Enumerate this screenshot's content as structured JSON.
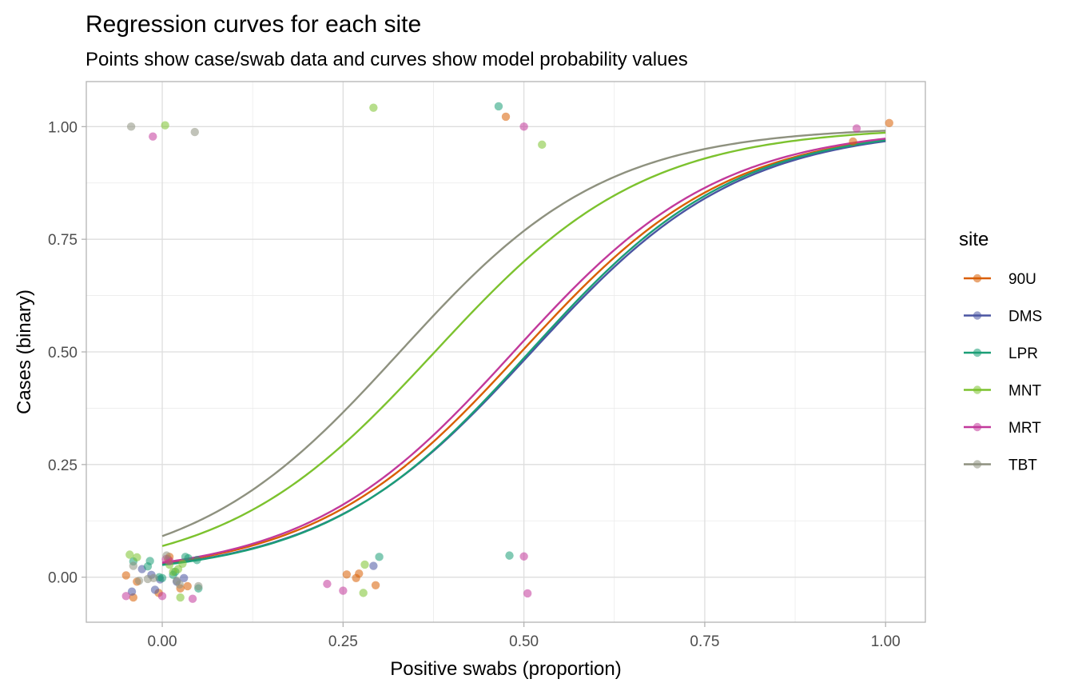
{
  "chart_data": {
    "type": "scatter",
    "title": "Regression curves for each site",
    "subtitle": "Points show case/swab data and curves show model probability values",
    "xlabel": "Positive swabs (proportion)",
    "ylabel": "Cases (binary)",
    "xlim": [
      -0.105,
      1.055
    ],
    "ylim": [
      -0.1,
      1.1
    ],
    "x_ticks": [
      0.0,
      0.25,
      0.5,
      0.75,
      1.0
    ],
    "x_tick_labels": [
      "0.00",
      "0.25",
      "0.50",
      "0.75",
      "1.00"
    ],
    "y_ticks": [
      0.0,
      0.25,
      0.5,
      0.75,
      1.0
    ],
    "y_tick_labels": [
      "0.00",
      "0.25",
      "0.50",
      "0.75",
      "1.00"
    ],
    "grid": true,
    "legend_title": "site",
    "legend_position": "right",
    "series": [
      {
        "name": "90U",
        "color": "#D95F02",
        "curve": {
          "intercept": -3.45,
          "slope": 6.95
        },
        "points": [
          [
            -0.05,
            0.004
          ],
          [
            -0.04,
            -0.045
          ],
          [
            -0.035,
            -0.01
          ],
          [
            -0.005,
            -0.035
          ],
          [
            0.008,
            0.04
          ],
          [
            0.01,
            0.045
          ],
          [
            0.025,
            -0.025
          ],
          [
            0.035,
            -0.02
          ],
          [
            0.255,
            0.006
          ],
          [
            0.268,
            -0.002
          ],
          [
            0.272,
            0.008
          ],
          [
            0.295,
            -0.018
          ],
          [
            0.475,
            1.022
          ],
          [
            0.955,
            0.967
          ],
          [
            1.005,
            1.008
          ]
        ]
      },
      {
        "name": "DMS",
        "color": "#4A55A2",
        "curve": {
          "intercept": -3.55,
          "slope": 6.95
        },
        "points": [
          [
            -0.042,
            -0.032
          ],
          [
            -0.028,
            0.018
          ],
          [
            -0.015,
            0.005
          ],
          [
            -0.01,
            -0.028
          ],
          [
            -0.003,
            -0.005
          ],
          [
            0.02,
            -0.01
          ],
          [
            0.03,
            -0.002
          ],
          [
            0.292,
            0.025
          ]
        ]
      },
      {
        "name": "LPR",
        "color": "#1B9E77",
        "curve": {
          "intercept": -3.58,
          "slope": 7.05
        },
        "points": [
          [
            -0.04,
            0.035
          ],
          [
            -0.02,
            0.024
          ],
          [
            -0.017,
            0.036
          ],
          [
            -0.004,
            0.0
          ],
          [
            0.0,
            -0.002
          ],
          [
            0.015,
            0.005
          ],
          [
            0.018,
            0.012
          ],
          [
            0.032,
            0.045
          ],
          [
            0.036,
            0.042
          ],
          [
            0.048,
            0.038
          ],
          [
            0.05,
            -0.025
          ],
          [
            0.3,
            0.045
          ],
          [
            0.465,
            1.045
          ],
          [
            0.48,
            0.048
          ]
        ]
      },
      {
        "name": "MNT",
        "color": "#7CC22E",
        "curve": {
          "intercept": -2.6,
          "slope": 6.9
        },
        "points": [
          [
            -0.045,
            0.05
          ],
          [
            -0.035,
            0.044
          ],
          [
            0.004,
            1.003
          ],
          [
            0.01,
            0.028
          ],
          [
            0.015,
            0.012
          ],
          [
            0.022,
            0.018
          ],
          [
            0.025,
            -0.045
          ],
          [
            0.028,
            0.03
          ],
          [
            0.278,
            -0.035
          ],
          [
            0.28,
            0.028
          ],
          [
            0.292,
            1.042
          ],
          [
            0.525,
            0.96
          ]
        ]
      },
      {
        "name": "MRT",
        "color": "#C2399B",
        "curve": {
          "intercept": -3.4,
          "slope": 7.0
        },
        "points": [
          [
            -0.05,
            -0.042
          ],
          [
            -0.013,
            0.978
          ],
          [
            0.0,
            -0.042
          ],
          [
            0.005,
            0.04
          ],
          [
            0.01,
            0.036
          ],
          [
            0.042,
            -0.048
          ],
          [
            0.228,
            -0.015
          ],
          [
            0.25,
            -0.03
          ],
          [
            0.5,
            1.0
          ],
          [
            0.5,
            0.046
          ],
          [
            0.505,
            -0.036
          ],
          [
            0.96,
            0.996
          ]
        ]
      },
      {
        "name": "TBT",
        "color": "#8E917F",
        "curve": {
          "intercept": -2.3,
          "slope": 7.0
        },
        "points": [
          [
            -0.043,
            1.0
          ],
          [
            -0.04,
            0.025
          ],
          [
            -0.032,
            -0.008
          ],
          [
            -0.02,
            -0.004
          ],
          [
            -0.012,
            -0.002
          ],
          [
            0.006,
            0.048
          ],
          [
            0.02,
            -0.008
          ],
          [
            0.024,
            -0.016
          ],
          [
            0.045,
            0.988
          ],
          [
            0.05,
            -0.02
          ]
        ]
      }
    ]
  }
}
